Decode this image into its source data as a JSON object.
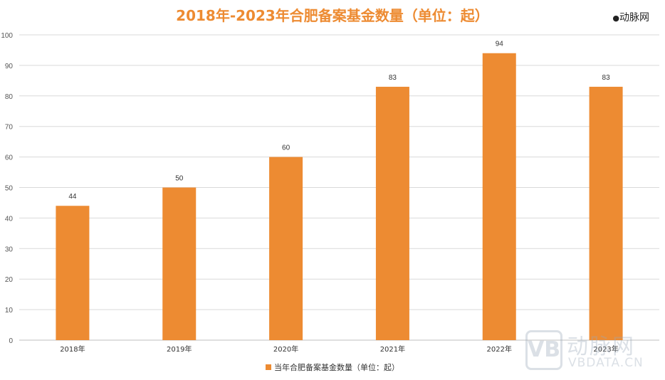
{
  "brand": {
    "top_mark": "动脉网",
    "watermark_cn": "动脉网",
    "watermark_en": "VBDATA.CN",
    "watermark_logo": "VB"
  },
  "colors": {
    "bar": "#ED8B32",
    "title": "#ED8B32",
    "grid": "#d9d9d9"
  },
  "chart_data": {
    "type": "bar",
    "title": "2018年-2023年合肥备案基金数量（单位：起）",
    "categories": [
      "2018年",
      "2019年",
      "2020年",
      "2021年",
      "2022年",
      "2023年"
    ],
    "series": [
      {
        "name": "当年合肥备案基金数量（单位：起）",
        "values": [
          44,
          50,
          60,
          83,
          94,
          83
        ]
      }
    ],
    "ylim": [
      0,
      100
    ],
    "yticks": [
      0,
      10,
      20,
      30,
      40,
      50,
      60,
      70,
      80,
      90,
      100
    ],
    "grid": true,
    "data_labels": true,
    "legend_position": "bottom"
  }
}
